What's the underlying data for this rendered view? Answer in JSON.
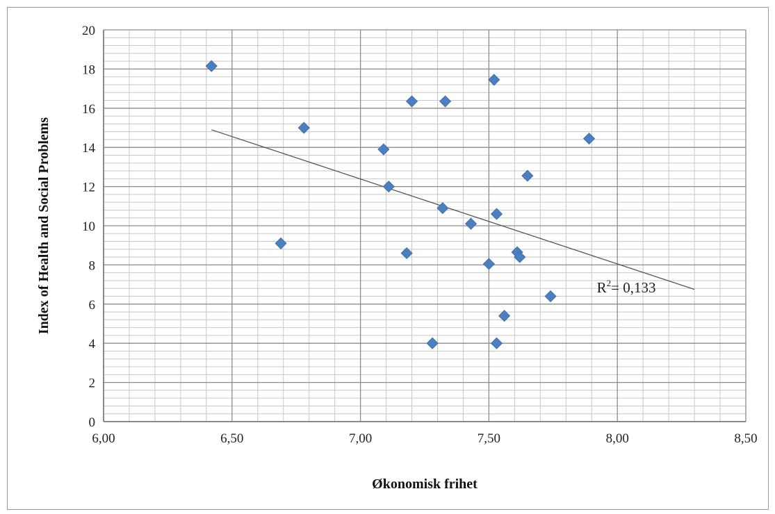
{
  "chart_data": {
    "type": "scatter",
    "xlabel": "Økonomisk frihet",
    "ylabel": "Index of Health and Social Problems",
    "xlim": [
      6.0,
      8.5
    ],
    "ylim": [
      0,
      20
    ],
    "x_ticks": [
      "6,00",
      "6,50",
      "7,00",
      "7,50",
      "8,00",
      "8,50"
    ],
    "y_ticks": [
      "0",
      "2",
      "4",
      "6",
      "8",
      "10",
      "12",
      "14",
      "16",
      "18",
      "20"
    ],
    "grid": true,
    "marker_color": "#4a7fc1",
    "series": [
      {
        "points": [
          {
            "x": 6.42,
            "y": 18.15
          },
          {
            "x": 6.69,
            "y": 9.1
          },
          {
            "x": 6.78,
            "y": 15.0
          },
          {
            "x": 7.09,
            "y": 13.9
          },
          {
            "x": 7.11,
            "y": 12.0
          },
          {
            "x": 7.18,
            "y": 8.6
          },
          {
            "x": 7.2,
            "y": 16.35
          },
          {
            "x": 7.28,
            "y": 4.0
          },
          {
            "x": 7.32,
            "y": 10.9
          },
          {
            "x": 7.33,
            "y": 16.35
          },
          {
            "x": 7.43,
            "y": 10.1
          },
          {
            "x": 7.5,
            "y": 8.05
          },
          {
            "x": 7.52,
            "y": 17.45
          },
          {
            "x": 7.53,
            "y": 4.0
          },
          {
            "x": 7.53,
            "y": 10.6
          },
          {
            "x": 7.56,
            "y": 5.4
          },
          {
            "x": 7.61,
            "y": 8.65
          },
          {
            "x": 7.62,
            "y": 8.4
          },
          {
            "x": 7.65,
            "y": 12.55
          },
          {
            "x": 7.74,
            "y": 6.4
          },
          {
            "x": 7.89,
            "y": 14.45
          }
        ]
      }
    ],
    "trendline": {
      "type": "linear",
      "x": [
        6.42,
        8.3
      ],
      "y": [
        14.9,
        6.75
      ]
    },
    "annotation": {
      "prefix": "R",
      "superscript": "2",
      "text": "= 0,133",
      "x": 7.92,
      "y": 6.6
    }
  }
}
